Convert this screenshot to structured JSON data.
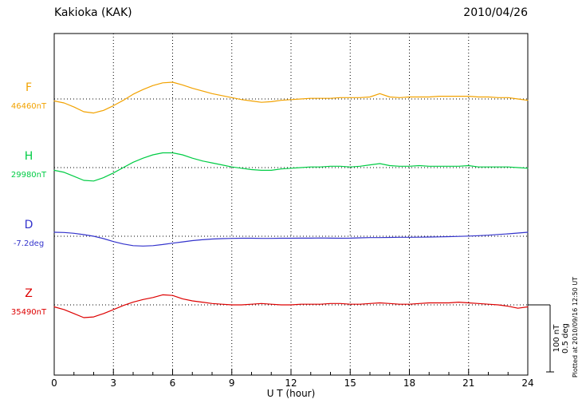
{
  "header": {
    "title": "Kakioka (KAK)",
    "date": "2010/04/26"
  },
  "x_axis": {
    "label": "U T (hour)",
    "tick_labels": [
      "0",
      "3",
      "6",
      "9",
      "12",
      "15",
      "18",
      "21",
      "24"
    ]
  },
  "scale_bar": {
    "nT": "100 nT",
    "deg": "0.5 deg"
  },
  "watermark": "Plotted at 2010/09/16 12:50 UT",
  "chart_data": {
    "type": "line",
    "title": "Kakioka (KAK)",
    "subtitle": "2010/04/26",
    "xlabel": "U T (hour)",
    "x_start": 0,
    "x_step": 0.5,
    "x_end": 24,
    "x_ticks": [
      0,
      3,
      6,
      9,
      12,
      15,
      18,
      21,
      24
    ],
    "grid": "dotted vertical lines every 3 hours; dotted horizontal baseline per trace",
    "legend_position": "left of plot, colored component letters with baseline values",
    "scale_reference": {
      "nT_per_bar": 100,
      "deg_per_bar": 0.5
    },
    "series": [
      {
        "name": "F",
        "unit": "nT",
        "baseline_value": 46460,
        "baseline_label": "46460nT",
        "color": "#f2a200",
        "offsets": [
          -3,
          -6,
          -12,
          -19,
          -21,
          -17,
          -10,
          -2,
          7,
          14,
          20,
          24,
          25,
          21,
          16,
          12,
          8,
          5,
          2,
          -1,
          -3,
          -5,
          -4,
          -2,
          -1,
          0,
          1,
          1,
          1,
          2,
          2,
          2,
          3,
          8,
          3,
          2,
          3,
          3,
          3,
          4,
          4,
          4,
          4,
          3,
          3,
          2,
          2,
          0,
          -2
        ]
      },
      {
        "name": "H",
        "unit": "nT",
        "baseline_value": 29980,
        "baseline_label": "29980nT",
        "color": "#00cc44",
        "offsets": [
          -4,
          -7,
          -13,
          -19,
          -20,
          -15,
          -8,
          0,
          8,
          14,
          19,
          22,
          22,
          19,
          14,
          10,
          7,
          4,
          1,
          -1,
          -3,
          -4,
          -4,
          -2,
          -1,
          0,
          1,
          1,
          2,
          2,
          1,
          2,
          4,
          6,
          3,
          2,
          2,
          3,
          2,
          2,
          2,
          2,
          3,
          1,
          1,
          1,
          1,
          0,
          -1
        ]
      },
      {
        "name": "D",
        "unit": "deg",
        "baseline_value": -7.2,
        "baseline_label": "-7.2deg",
        "color": "#3333cc",
        "offsets": [
          0.03,
          0.028,
          0.022,
          0.012,
          0,
          -0.018,
          -0.04,
          -0.058,
          -0.07,
          -0.073,
          -0.07,
          -0.062,
          -0.052,
          -0.042,
          -0.033,
          -0.026,
          -0.021,
          -0.018,
          -0.016,
          -0.015,
          -0.015,
          -0.016,
          -0.016,
          -0.015,
          -0.015,
          -0.014,
          -0.014,
          -0.013,
          -0.014,
          -0.015,
          -0.014,
          -0.012,
          -0.01,
          -0.01,
          -0.009,
          -0.008,
          -0.008,
          -0.007,
          -0.006,
          -0.005,
          -0.003,
          -0.001,
          0.001,
          0.004,
          0.008,
          0.013,
          0.018,
          0.024,
          0.03
        ]
      },
      {
        "name": "Z",
        "unit": "nT",
        "baseline_value": 35490,
        "baseline_label": "35490nT",
        "color": "#dd0000",
        "offsets": [
          -3,
          -7,
          -13,
          -19,
          -18,
          -13,
          -7,
          -1,
          4,
          8,
          11,
          15,
          14,
          9,
          6,
          4,
          2,
          1,
          0,
          0,
          1,
          2,
          1,
          0,
          0,
          1,
          1,
          1,
          2,
          2,
          1,
          1,
          2,
          3,
          2,
          1,
          1,
          2,
          3,
          3,
          3,
          4,
          3,
          2,
          1,
          0,
          -2,
          -5,
          -3
        ]
      }
    ]
  }
}
